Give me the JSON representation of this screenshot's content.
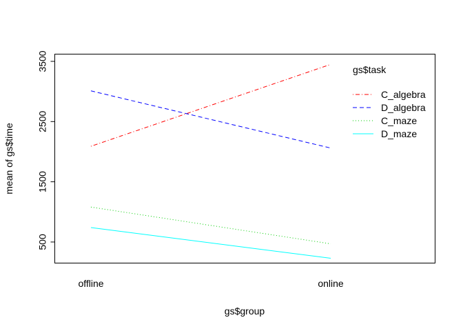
{
  "chart_data": {
    "type": "line",
    "title": "",
    "xlabel": "gs$group",
    "ylabel": "mean of  gs$time",
    "categories": [
      "offline",
      "online"
    ],
    "yticks": [
      500,
      1500,
      2500,
      3500
    ],
    "ylim": [
      150,
      3620
    ],
    "legend_title": "gs$task",
    "legend_position": "top-right",
    "grid": false,
    "series": [
      {
        "name": "C_algebra",
        "values": [
          2090,
          3450
        ],
        "color": "#ff0000",
        "linestyle": "dotdash"
      },
      {
        "name": "D_algebra",
        "values": [
          3010,
          2060
        ],
        "color": "#0000ff",
        "linestyle": "dashed"
      },
      {
        "name": "C_maze",
        "values": [
          1080,
          470
        ],
        "color": "#00cd00",
        "linestyle": "dotted"
      },
      {
        "name": "D_maze",
        "values": [
          740,
          230
        ],
        "color": "#00ffff",
        "linestyle": "solid"
      }
    ]
  }
}
